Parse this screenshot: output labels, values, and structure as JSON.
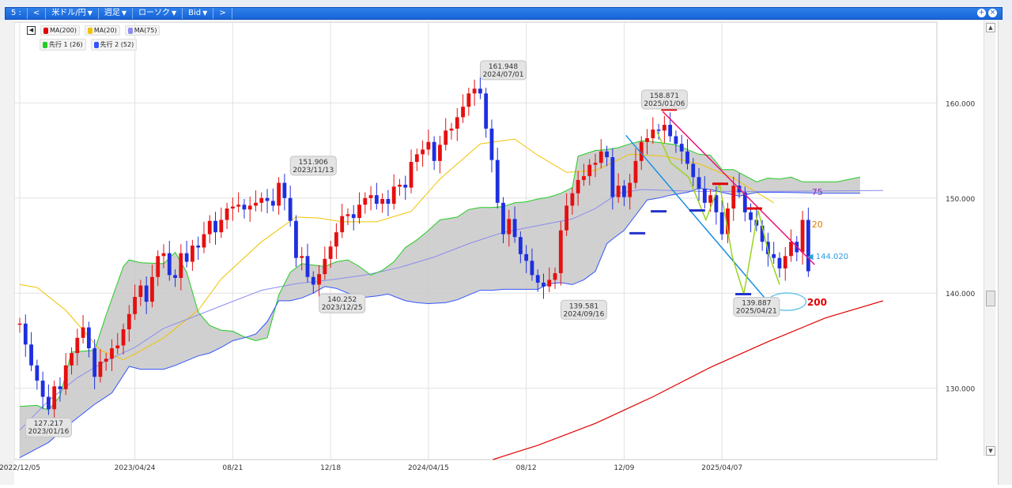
{
  "toolbar": {
    "items": [
      "5 :",
      "<",
      "米ドル/円",
      "週足",
      "ローソク",
      "Bid",
      ">"
    ],
    "arrows": [
      "",
      "",
      "▼",
      "▼",
      "▼",
      "▼",
      ""
    ],
    "buttons": [
      "+",
      "×"
    ]
  },
  "legend": {
    "collapse": "◀",
    "items": [
      {
        "label": "MA(200)",
        "color": "#e00000"
      },
      {
        "label": "MA(20)",
        "color": "#f2c200"
      },
      {
        "label": "MA(75)",
        "color": "#8c8cf0"
      },
      {
        "label": "先行 1 (26)",
        "color": "#22cc22"
      },
      {
        "label": "先行 2 (52)",
        "color": "#3355ff"
      }
    ]
  },
  "scrollbar": {
    "up": "▲",
    "down": "▼"
  },
  "chart_data": {
    "type": "candlestick",
    "symbol": "米ドル/円",
    "timeframe": "週足",
    "price_type": "Bid",
    "ylim": [
      122.5,
      168.5
    ],
    "y_ticks": [
      {
        "v": 130,
        "label": "130.000"
      },
      {
        "v": 140,
        "label": "140.000"
      },
      {
        "v": 150,
        "label": "150.000"
      },
      {
        "v": 160,
        "label": "160.000"
      }
    ],
    "x_ticks": [
      {
        "i": 0,
        "label": "2022/12/05"
      },
      {
        "i": 20,
        "label": "2023/04/24"
      },
      {
        "i": 37,
        "label": "08/21"
      },
      {
        "i": 54,
        "label": "12/18"
      },
      {
        "i": 71,
        "label": "2024/04/15"
      },
      {
        "i": 88,
        "label": "08/12"
      },
      {
        "i": 105,
        "label": "12/09"
      },
      {
        "i": 122,
        "label": "2025/04/07"
      }
    ],
    "closes": [
      136.8,
      134.6,
      132.4,
      130.8,
      129.1,
      127.8,
      130.2,
      129.9,
      132.4,
      133.7,
      135.3,
      136.4,
      134.2,
      131.2,
      132.8,
      133.1,
      134.2,
      134.5,
      136.2,
      137.8,
      139.6,
      140.8,
      139.1,
      141.7,
      143.9,
      144.2,
      141.9,
      141.6,
      144.2,
      143.3,
      145.0,
      144.8,
      146.2,
      147.6,
      146.4,
      147.7,
      148.9,
      149.1,
      149.3,
      148.8,
      149.2,
      149.5,
      150.0,
      149.7,
      149.2,
      151.6,
      150.0,
      147.6,
      143.7,
      143.9,
      141.7,
      140.9,
      142.0,
      143.6,
      144.9,
      146.4,
      148.1,
      148.3,
      147.9,
      149.3,
      150.0,
      150.3,
      149.4,
      149.9,
      149.4,
      151.2,
      151.4,
      151.1,
      153.8,
      154.6,
      155.1,
      155.9,
      153.9,
      155.6,
      157.1,
      157.3,
      158.5,
      159.6,
      161.0,
      161.5,
      161.0,
      157.3,
      154.0,
      149.5,
      146.2,
      147.8,
      145.9,
      144.1,
      143.4,
      141.9,
      141.1,
      140.7,
      141.4,
      142.1,
      146.6,
      149.2,
      150.5,
      151.9,
      152.3,
      153.5,
      153.7,
      154.9,
      154.3,
      150.1,
      151.3,
      150.1,
      151.6,
      153.9,
      155.9,
      156.3,
      157.2,
      157.1,
      157.7,
      156.5,
      155.7,
      154.9,
      153.6,
      152.2,
      151.0,
      149.5,
      150.3,
      148.5,
      146.2,
      148.9,
      151.3,
      150.6,
      148.5,
      147.7,
      147.1,
      145.4,
      144.1,
      143.7,
      142.6,
      143.9,
      145.4,
      144.3,
      147.7,
      142.3
    ],
    "series": [
      {
        "name": "MA(200)",
        "color": "#e00000",
        "points": [
          [
            82.2,
            122.5
          ],
          [
            90,
            124.0
          ],
          [
            100,
            126.3
          ],
          [
            110,
            129.1
          ],
          [
            120,
            132.2
          ],
          [
            130,
            134.9
          ],
          [
            140,
            137.4
          ],
          [
            150,
            139.2
          ]
        ]
      },
      {
        "name": "MA(20)",
        "color": "#f2c200",
        "points": [
          [
            0,
            140.9
          ],
          [
            3,
            140.6
          ],
          [
            8,
            138.2
          ],
          [
            14,
            134.0
          ],
          [
            18,
            133.0
          ],
          [
            20,
            133.6
          ],
          [
            25,
            135.3
          ],
          [
            31,
            138.2
          ],
          [
            35,
            141.5
          ],
          [
            42,
            145.4
          ],
          [
            48,
            148.0
          ],
          [
            52,
            147.9
          ],
          [
            56,
            147.5
          ],
          [
            62,
            147.5
          ],
          [
            68,
            148.6
          ],
          [
            73,
            152.0
          ],
          [
            80,
            155.7
          ],
          [
            86,
            156.2
          ],
          [
            90,
            154.5
          ],
          [
            95,
            152.7
          ],
          [
            100,
            152.9
          ],
          [
            106,
            154.6
          ],
          [
            112,
            154.4
          ],
          [
            118,
            153.6
          ],
          [
            124,
            152.1
          ],
          [
            128,
            150.6
          ],
          [
            131,
            149.5
          ]
        ]
      },
      {
        "name": "MA(75)",
        "color": "#8c8cf0",
        "points": [
          [
            0,
            125.6
          ],
          [
            5,
            128.7
          ],
          [
            10,
            131.1
          ],
          [
            15,
            132.9
          ],
          [
            20,
            134.3
          ],
          [
            25,
            136.3
          ],
          [
            31,
            137.7
          ],
          [
            36,
            138.9
          ],
          [
            42,
            140.3
          ],
          [
            48,
            141.0
          ],
          [
            54,
            141.4
          ],
          [
            60,
            141.9
          ],
          [
            66,
            142.7
          ],
          [
            72,
            143.8
          ],
          [
            78,
            145.2
          ],
          [
            84,
            146.4
          ],
          [
            90,
            147.1
          ],
          [
            96,
            147.8
          ],
          [
            100,
            148.9
          ],
          [
            104,
            150.5
          ],
          [
            108,
            150.9
          ],
          [
            113,
            150.8
          ],
          [
            118,
            150.7
          ],
          [
            124,
            150.7
          ],
          [
            130,
            150.7
          ],
          [
            150,
            150.8
          ]
        ]
      },
      {
        "name": "先行 1 (26)",
        "color": "#22cc22",
        "points": [
          [
            0,
            128.1
          ],
          [
            3,
            128.2
          ],
          [
            5,
            127.7
          ],
          [
            7,
            129.2
          ],
          [
            9,
            133.8
          ],
          [
            13,
            134.0
          ],
          [
            15,
            137.7
          ],
          [
            18,
            142.8
          ],
          [
            19,
            143.5
          ],
          [
            21,
            143.2
          ],
          [
            25,
            143.1
          ],
          [
            27,
            144.3
          ],
          [
            29,
            142.2
          ],
          [
            31,
            138.0
          ],
          [
            33,
            136.6
          ],
          [
            35,
            136.1
          ],
          [
            37,
            136.0
          ],
          [
            39,
            135.4
          ],
          [
            41,
            135.0
          ],
          [
            43,
            135.3
          ],
          [
            45,
            139.8
          ],
          [
            47,
            142.2
          ],
          [
            49,
            143.1
          ],
          [
            53,
            142.8
          ],
          [
            55,
            143.3
          ],
          [
            57,
            143.5
          ],
          [
            59,
            142.8
          ],
          [
            61,
            141.9
          ],
          [
            63,
            142.4
          ],
          [
            65,
            143.3
          ],
          [
            67,
            144.8
          ],
          [
            69,
            145.6
          ],
          [
            71,
            146.6
          ],
          [
            73,
            147.7
          ],
          [
            76,
            148.0
          ],
          [
            78,
            148.8
          ],
          [
            80,
            149.0
          ],
          [
            82,
            149.0
          ],
          [
            84,
            149.1
          ],
          [
            86,
            149.5
          ],
          [
            88,
            149.6
          ],
          [
            90,
            149.9
          ],
          [
            92,
            150.1
          ],
          [
            94,
            150.5
          ],
          [
            96,
            151.1
          ],
          [
            97,
            154.4
          ],
          [
            100,
            155.0
          ],
          [
            102,
            155.1
          ],
          [
            104,
            155.3
          ],
          [
            106,
            155.7
          ],
          [
            108,
            156.0
          ],
          [
            109,
            156.0
          ],
          [
            114,
            155.6
          ],
          [
            118,
            154.6
          ],
          [
            120,
            154.5
          ],
          [
            122,
            153.0
          ],
          [
            124,
            153.0
          ],
          [
            128,
            151.7
          ],
          [
            130,
            152.1
          ],
          [
            132,
            152.0
          ],
          [
            134,
            152.2
          ],
          [
            136,
            151.7
          ],
          [
            138,
            151.7
          ],
          [
            142,
            151.7
          ],
          [
            146,
            152.2
          ]
        ]
      },
      {
        "name": "先行 2 (52)",
        "color": "#3355ff",
        "points": [
          [
            0,
            122.7
          ],
          [
            5,
            124.3
          ],
          [
            9,
            126.4
          ],
          [
            13,
            128.3
          ],
          [
            16,
            129.5
          ],
          [
            19,
            132.3
          ],
          [
            21,
            132.0
          ],
          [
            25,
            132.0
          ],
          [
            27,
            132.4
          ],
          [
            31,
            133.4
          ],
          [
            33,
            133.7
          ],
          [
            35,
            134.3
          ],
          [
            37,
            135.0
          ],
          [
            39,
            135.3
          ],
          [
            41,
            135.7
          ],
          [
            43,
            137.0
          ],
          [
            45,
            139.2
          ],
          [
            47,
            139.2
          ],
          [
            49,
            139.5
          ],
          [
            51,
            140.0
          ],
          [
            53,
            140.7
          ],
          [
            55,
            140.5
          ],
          [
            57,
            140.0
          ],
          [
            59,
            139.5
          ],
          [
            62,
            139.7
          ],
          [
            64,
            139.9
          ],
          [
            67,
            139.2
          ],
          [
            69,
            139.0
          ],
          [
            71,
            138.9
          ],
          [
            74,
            139.0
          ],
          [
            76,
            139.3
          ],
          [
            78,
            139.8
          ],
          [
            80,
            140.3
          ],
          [
            82,
            140.3
          ],
          [
            84,
            140.4
          ],
          [
            86,
            140.4
          ],
          [
            88,
            140.4
          ],
          [
            90,
            140.4
          ],
          [
            92,
            141.0
          ],
          [
            94,
            141.1
          ],
          [
            96,
            140.9
          ],
          [
            98,
            141.4
          ],
          [
            100,
            142.3
          ],
          [
            102,
            145.2
          ],
          [
            103,
            145.7
          ],
          [
            105,
            146.6
          ],
          [
            107,
            148.2
          ],
          [
            109,
            149.8
          ],
          [
            111,
            150.0
          ],
          [
            113,
            150.3
          ],
          [
            116,
            150.6
          ],
          [
            118,
            151.0
          ],
          [
            120,
            150.9
          ],
          [
            122,
            150.6
          ],
          [
            125,
            150.2
          ],
          [
            128,
            150.6
          ],
          [
            133,
            150.6
          ],
          [
            140,
            150.5
          ],
          [
            146,
            150.5
          ]
        ]
      }
    ],
    "annotations": [
      {
        "i": 5,
        "value": "127.217",
        "date": "2023/01/16",
        "pos": "below"
      },
      {
        "i": 51,
        "value": "151.906",
        "date": "2023/11/13",
        "pos": "above"
      },
      {
        "i": 56,
        "value": "140.252",
        "date": "2023/12/25",
        "pos": "below"
      },
      {
        "i": 84,
        "value": "161.948",
        "date": "2024/07/01",
        "pos": "above"
      },
      {
        "i": 98,
        "value": "139.581",
        "date": "2024/09/16",
        "pos": "below"
      },
      {
        "i": 112,
        "value": "158.871",
        "date": "2025/01/06",
        "pos": "above"
      },
      {
        "i": 128,
        "value": "139.887",
        "date": "2025/04/21",
        "pos": "below"
      }
    ],
    "labels": {
      "ma75": "75",
      "ma20": "20",
      "ma200": "200",
      "current": "144.020"
    }
  }
}
